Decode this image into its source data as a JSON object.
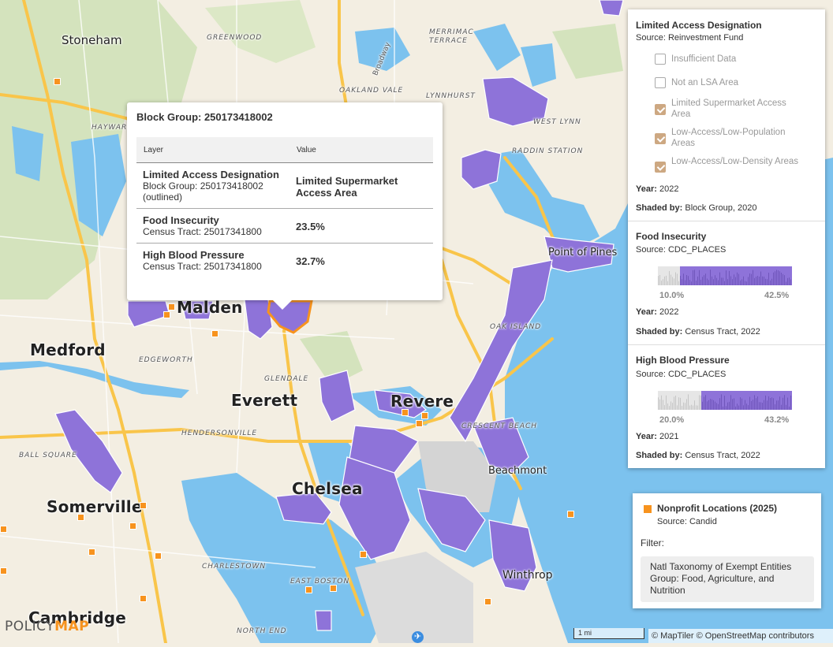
{
  "map": {
    "places_big": [
      "Malden",
      "Medford",
      "Everett",
      "Revere",
      "Chelsea",
      "Somerville",
      "Cambridge"
    ],
    "places_mid": [
      "Stoneham",
      "Point of Pines",
      "Beachmont",
      "Winthrop"
    ],
    "places_small": [
      "GREENWOOD",
      "MERRIMAC TERRACE",
      "OAKLAND VALE",
      "LYNNHURST",
      "HAYWARD",
      "WEST LYNN",
      "RADDIN STATION",
      "EDGEWORTH",
      "GLENDALE",
      "HENDERSONVILLE",
      "BALL SQUARE",
      "CRESCENT BEACH",
      "OAK ISLAND",
      "CHARLESTOWN",
      "EAST BOSTON",
      "NORTH END",
      "Broadway"
    ],
    "colors": {
      "water": "#7cc2ee",
      "land": "#f3eee2",
      "park": "#cfe0b6",
      "lsa": "#8e73d9",
      "nonprofit": "#f7931e",
      "road": "#f9c54a"
    }
  },
  "popup": {
    "title": "Block Group: 250173418002",
    "col_layer": "Layer",
    "col_value": "Value",
    "rows": [
      {
        "layer": "Limited Access Designation",
        "sub": "Block Group: 250173418002 (outlined)",
        "value": "Limited Supermarket Access Area"
      },
      {
        "layer": "Food Insecurity",
        "sub": "Census Tract: 25017341800",
        "value": "23.5%"
      },
      {
        "layer": "High Blood Pressure",
        "sub": "Census Tract: 25017341800",
        "value": "32.7%"
      }
    ]
  },
  "legend": {
    "lad": {
      "title": "Limited Access Designation",
      "source": "Source: Reinvestment Fund",
      "options": [
        {
          "label": "Insufficient Data",
          "checked": false
        },
        {
          "label": "Not an LSA Area",
          "checked": false
        },
        {
          "label": "Limited Supermarket Access Area",
          "checked": true
        },
        {
          "label": "Low-Access/Low-Population Areas",
          "checked": true
        },
        {
          "label": "Low-Access/Low-Density Areas",
          "checked": true
        }
      ],
      "year_label": "Year:",
      "year": "2022",
      "shaded_label": "Shaded by:",
      "shaded": "Block Group, 2020"
    },
    "food": {
      "title": "Food Insecurity",
      "source": "Source: CDC_PLACES",
      "min": "10.0%",
      "max": "42.5%",
      "year_label": "Year:",
      "year": "2022",
      "shaded_label": "Shaded by:",
      "shaded": "Census Tract, 2022"
    },
    "hbp": {
      "title": "High Blood Pressure",
      "source": "Source: CDC_PLACES",
      "min": "20.0%",
      "max": "43.2%",
      "year_label": "Year:",
      "year": "2021",
      "shaded_label": "Shaded by:",
      "shaded": "Census Tract, 2022"
    }
  },
  "nonprofit": {
    "title": "Nonprofit Locations (2025)",
    "source": "Source: Candid",
    "filter_label": "Filter:",
    "filter_text": "Natl Taxonomy of Exempt Entities Group: Food, Agriculture, and Nutrition"
  },
  "footer": {
    "logo_a": "POLICY",
    "logo_b": "MAP",
    "scale": "1 mi",
    "attribution": "© MapTiler © OpenStreetMap contributors"
  }
}
